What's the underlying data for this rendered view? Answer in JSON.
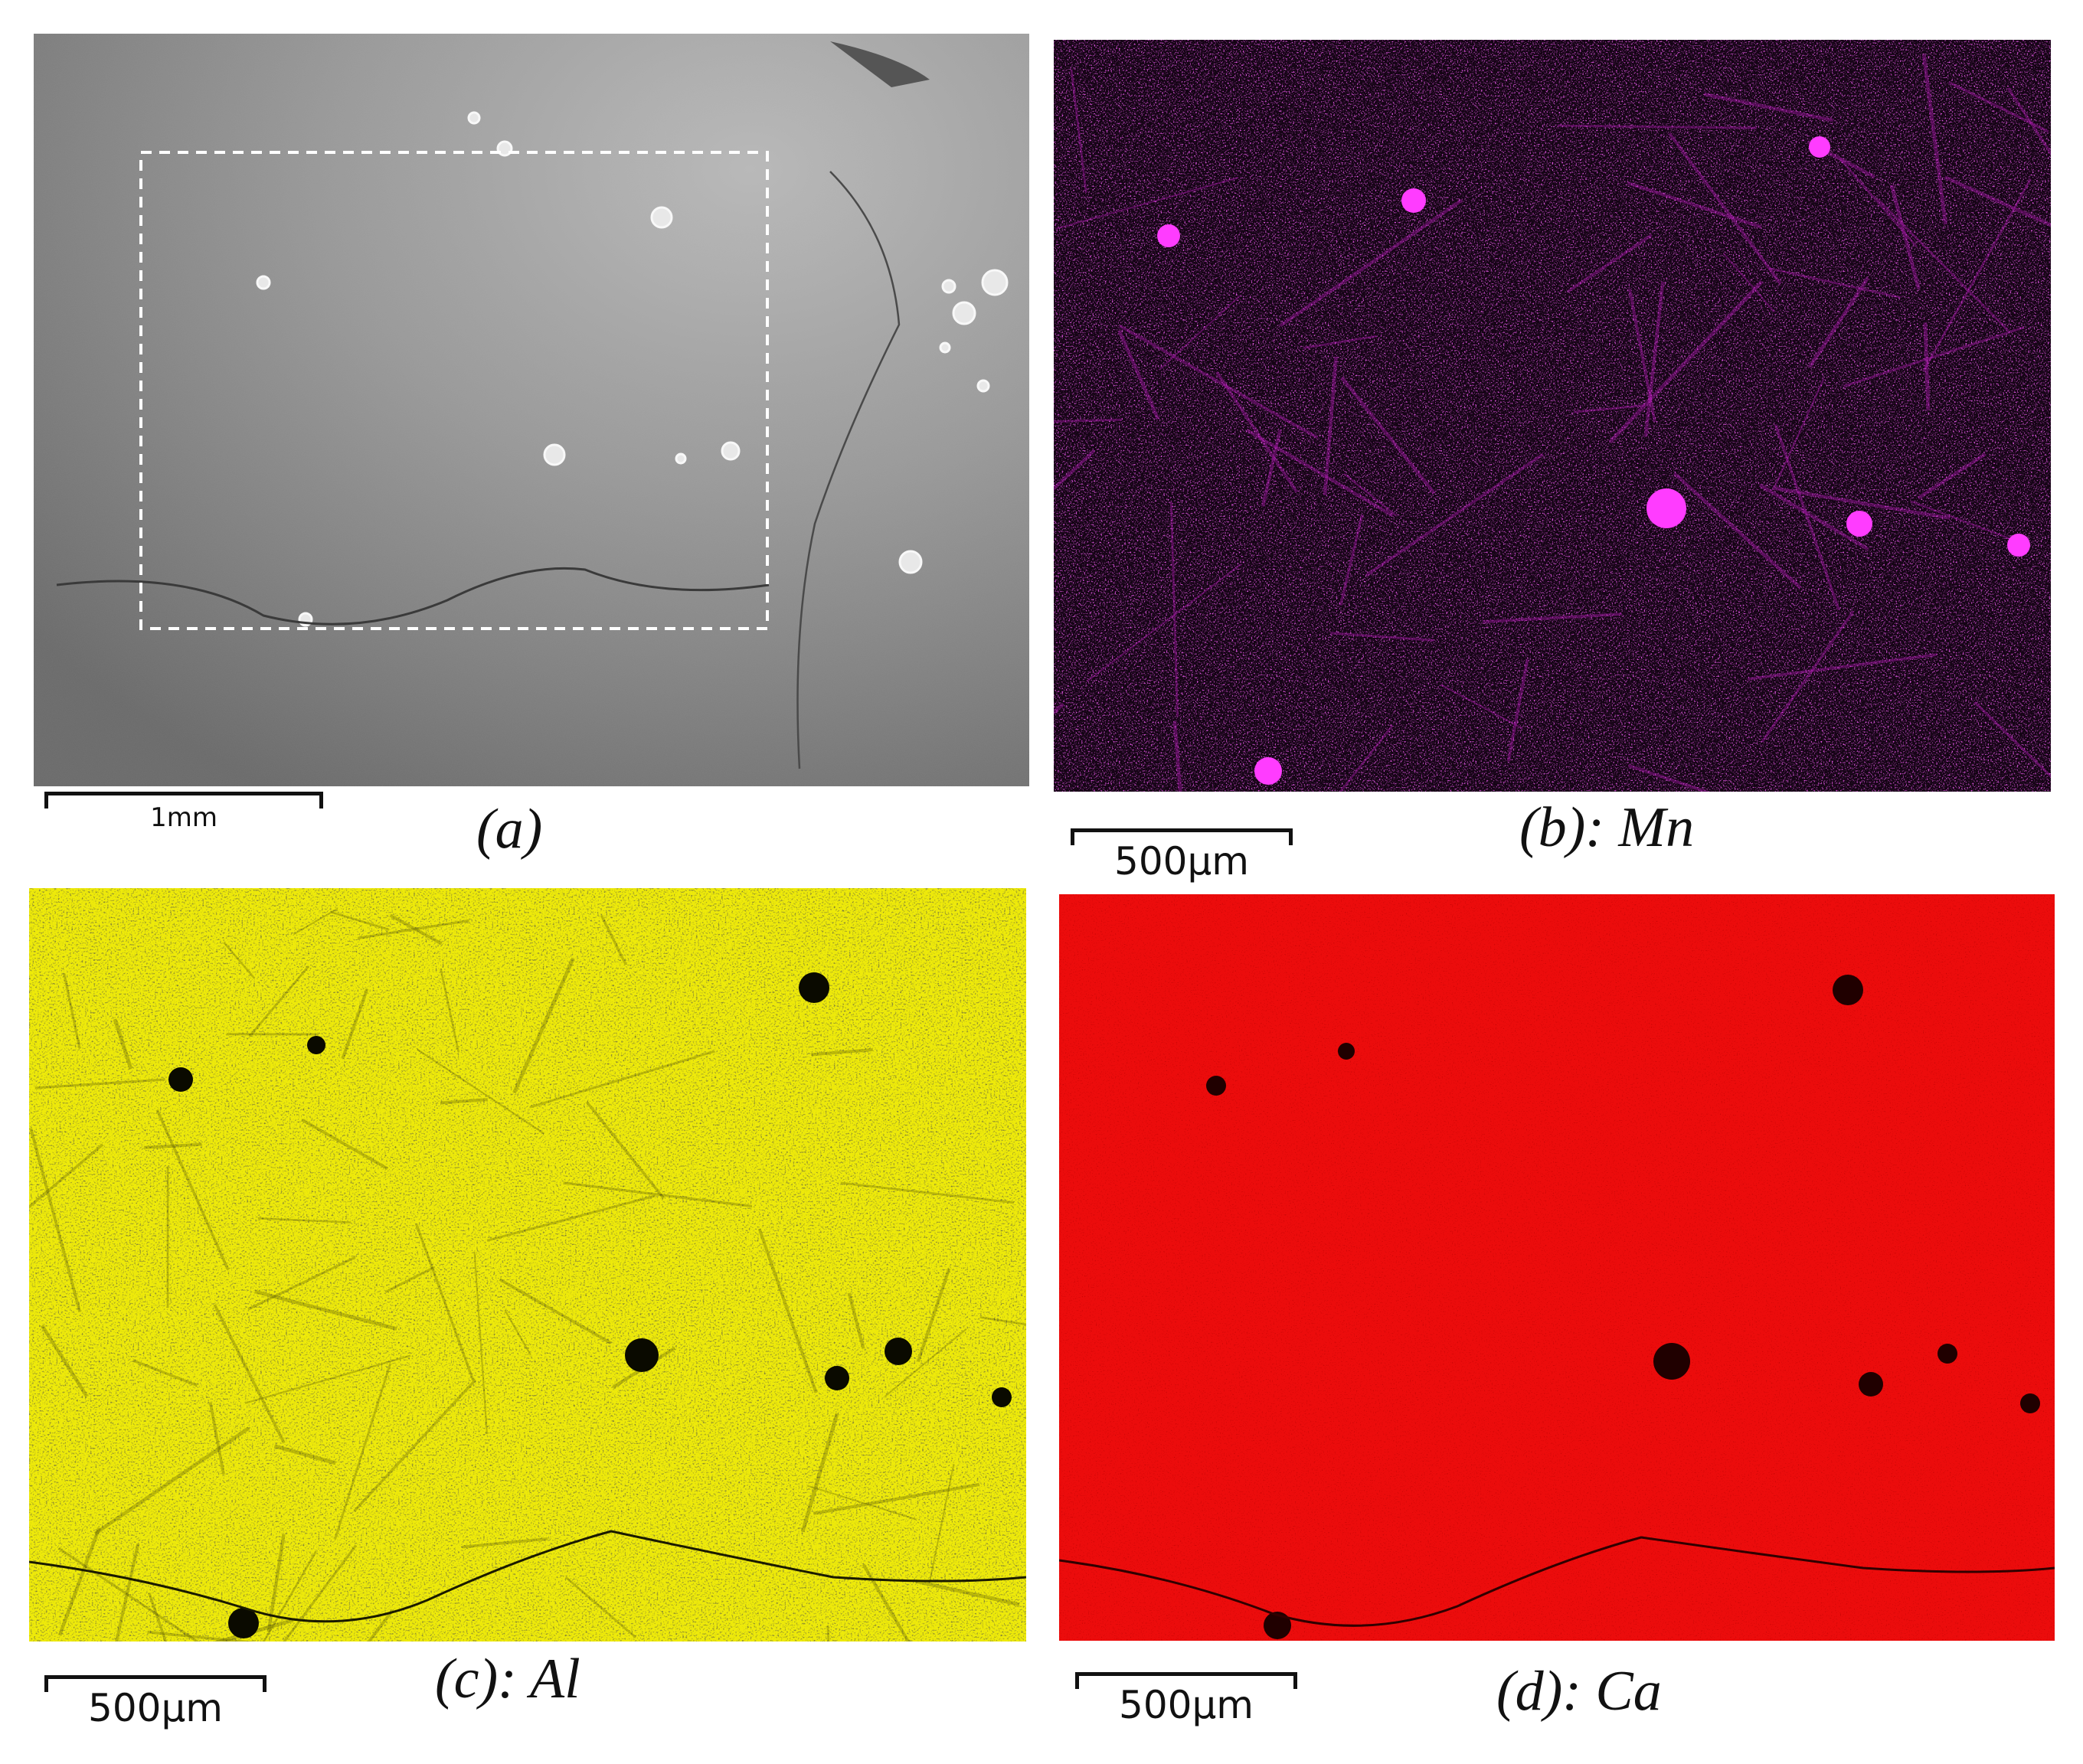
{
  "panels": {
    "a": {
      "caption": "(a)",
      "scale_label": "1mm",
      "name": "sem-image"
    },
    "b": {
      "caption": "(b): Mn",
      "scale_label": "500µm",
      "name": "mn-map",
      "color": "#d31fd6"
    },
    "c": {
      "caption": "(c): Al",
      "scale_label": "500µm",
      "name": "al-map",
      "color": "#eeea0a"
    },
    "d": {
      "caption": "(d): Ca",
      "scale_label": "500µm",
      "name": "ca-map",
      "color": "#ee0a0a"
    }
  }
}
